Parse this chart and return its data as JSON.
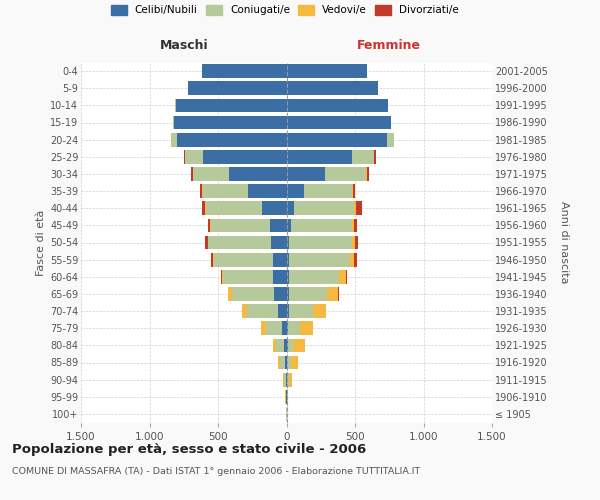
{
  "age_groups": [
    "100+",
    "95-99",
    "90-94",
    "85-89",
    "80-84",
    "75-79",
    "70-74",
    "65-69",
    "60-64",
    "55-59",
    "50-54",
    "45-49",
    "40-44",
    "35-39",
    "30-34",
    "25-29",
    "20-24",
    "15-19",
    "10-14",
    "5-9",
    "0-4"
  ],
  "birth_years": [
    "≤ 1905",
    "1906-1910",
    "1911-1915",
    "1916-1920",
    "1921-1925",
    "1926-1930",
    "1931-1935",
    "1936-1940",
    "1941-1945",
    "1946-1950",
    "1951-1955",
    "1956-1960",
    "1961-1965",
    "1966-1970",
    "1971-1975",
    "1976-1980",
    "1981-1985",
    "1986-1990",
    "1991-1995",
    "1996-2000",
    "2001-2005"
  ],
  "male": {
    "celibi": [
      0,
      2,
      5,
      10,
      15,
      30,
      60,
      90,
      100,
      100,
      110,
      120,
      180,
      280,
      420,
      610,
      800,
      820,
      810,
      720,
      620
    ],
    "coniugati": [
      1,
      4,
      15,
      35,
      65,
      120,
      230,
      310,
      360,
      430,
      460,
      430,
      410,
      330,
      260,
      130,
      40,
      5,
      2,
      0,
      0
    ],
    "vedovi": [
      0,
      2,
      5,
      15,
      20,
      35,
      35,
      25,
      10,
      5,
      5,
      5,
      5,
      5,
      5,
      0,
      0,
      0,
      0,
      0,
      0
    ],
    "divorziati": [
      0,
      0,
      0,
      0,
      0,
      0,
      0,
      5,
      5,
      15,
      20,
      15,
      20,
      15,
      10,
      5,
      0,
      0,
      0,
      0,
      0
    ]
  },
  "female": {
    "nubili": [
      0,
      2,
      5,
      5,
      10,
      10,
      15,
      15,
      15,
      15,
      20,
      30,
      55,
      130,
      280,
      480,
      730,
      760,
      740,
      670,
      590
    ],
    "coniugate": [
      1,
      5,
      15,
      25,
      40,
      85,
      175,
      280,
      370,
      450,
      460,
      450,
      440,
      350,
      300,
      160,
      55,
      5,
      2,
      0,
      0
    ],
    "vedove": [
      1,
      5,
      20,
      55,
      85,
      100,
      95,
      80,
      50,
      30,
      20,
      15,
      10,
      5,
      5,
      0,
      0,
      0,
      0,
      0,
      0
    ],
    "divorziate": [
      0,
      0,
      0,
      0,
      0,
      0,
      0,
      5,
      10,
      20,
      20,
      20,
      45,
      15,
      20,
      10,
      0,
      0,
      0,
      0,
      0
    ]
  },
  "colors": {
    "celibi_nubili": "#3a6ea5",
    "coniugati": "#b5c99a",
    "vedovi": "#f5b942",
    "divorziati": "#c0392b"
  },
  "xlim": 1500,
  "title": "Popolazione per età, sesso e stato civile - 2006",
  "subtitle": "COMUNE DI MASSAFRA (TA) - Dati ISTAT 1° gennaio 2006 - Elaborazione TUTTITALIA.IT",
  "ylabel_left": "Fasce di età",
  "ylabel_right": "Anni di nascita",
  "xlabel_left": "Maschi",
  "xlabel_right": "Femmine",
  "bg_color": "#f9f9f9",
  "plot_bg": "#ffffff",
  "grid_color": "#cccccc"
}
